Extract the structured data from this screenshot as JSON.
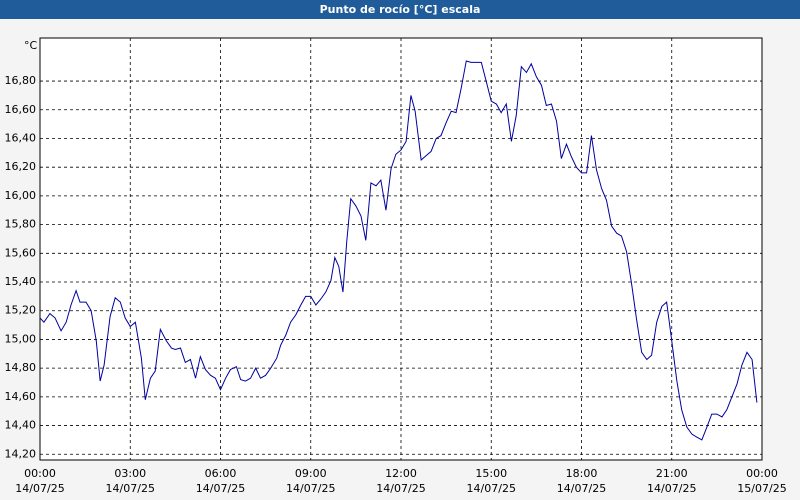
{
  "chart_data": {
    "type": "line",
    "title": "Punto de rocío [°C] escala",
    "y_label": "°C",
    "x": [
      0,
      0.13,
      0.33,
      0.5,
      0.7,
      0.87,
      1.03,
      1.2,
      1.33,
      1.53,
      1.7,
      1.87,
      2,
      2.13,
      2.33,
      2.5,
      2.67,
      2.83,
      3,
      3.17,
      3.37,
      3.5,
      3.67,
      3.83,
      4,
      4.2,
      4.37,
      4.5,
      4.67,
      4.83,
      5,
      5.17,
      5.33,
      5.5,
      5.67,
      5.83,
      6,
      6.17,
      6.33,
      6.53,
      6.67,
      6.83,
      7,
      7.17,
      7.33,
      7.5,
      7.67,
      7.87,
      8,
      8.17,
      8.33,
      8.5,
      8.67,
      8.83,
      9,
      9.17,
      9.33,
      9.5,
      9.67,
      9.8,
      9.93,
      10.07,
      10.2,
      10.33,
      10.5,
      10.67,
      10.83,
      11,
      11.17,
      11.33,
      11.5,
      11.67,
      11.83,
      12,
      12.17,
      12.33,
      12.47,
      12.67,
      12.83,
      13,
      13.17,
      13.33,
      13.5,
      13.67,
      13.83,
      14,
      14.17,
      14.33,
      14.5,
      14.67,
      14.83,
      15,
      15.17,
      15.33,
      15.5,
      15.67,
      15.83,
      16,
      16.17,
      16.33,
      16.5,
      16.67,
      16.83,
      17,
      17.17,
      17.33,
      17.5,
      17.67,
      17.83,
      18,
      18.17,
      18.33,
      18.5,
      18.67,
      18.83,
      19,
      19.17,
      19.33,
      19.5,
      19.67,
      19.83,
      20,
      20.17,
      20.33,
      20.5,
      20.67,
      20.83,
      21,
      21.17,
      21.33,
      21.5,
      21.67,
      21.83,
      22,
      22.17,
      22.33,
      22.5,
      22.67,
      22.83,
      23,
      23.17,
      23.33,
      23.5,
      23.67,
      23.83
    ],
    "series": [
      {
        "name": "Punto de rocío",
        "color": "#0000a0",
        "values": [
          15.15,
          15.12,
          15.18,
          15.15,
          15.06,
          15.12,
          15.24,
          15.34,
          15.26,
          15.26,
          15.2,
          14.99,
          14.71,
          14.82,
          15.16,
          15.29,
          15.26,
          15.15,
          15.09,
          15.12,
          14.87,
          14.58,
          14.73,
          14.78,
          15.07,
          14.99,
          14.94,
          14.93,
          14.94,
          14.84,
          14.86,
          14.73,
          14.88,
          14.79,
          14.75,
          14.73,
          14.65,
          14.73,
          14.79,
          14.81,
          14.72,
          14.71,
          14.73,
          14.8,
          14.73,
          14.75,
          14.8,
          14.87,
          14.96,
          15.03,
          15.12,
          15.17,
          15.24,
          15.3,
          15.3,
          15.24,
          15.28,
          15.33,
          15.41,
          15.57,
          15.51,
          15.33,
          15.69,
          15.98,
          15.93,
          15.86,
          15.69,
          16.09,
          16.07,
          16.11,
          15.9,
          16.19,
          16.29,
          16.32,
          16.38,
          16.7,
          16.59,
          16.25,
          16.28,
          16.31,
          16.4,
          16.42,
          16.51,
          16.59,
          16.58,
          16.75,
          16.94,
          16.93,
          16.93,
          16.93,
          16.8,
          16.66,
          16.64,
          16.58,
          16.64,
          16.38,
          16.56,
          16.9,
          16.86,
          16.92,
          16.83,
          16.77,
          16.63,
          16.64,
          16.52,
          16.26,
          16.36,
          16.27,
          16.2,
          16.16,
          16.16,
          16.42,
          16.18,
          16.05,
          15.97,
          15.79,
          15.74,
          15.72,
          15.61,
          15.38,
          15.14,
          14.91,
          14.86,
          14.89,
          15.12,
          15.23,
          15.26,
          14.99,
          14.71,
          14.51,
          14.39,
          14.34,
          14.32,
          14.3,
          14.39,
          14.48,
          14.48,
          14.46,
          14.51,
          14.6,
          14.69,
          14.82,
          14.91,
          14.86,
          14.56
        ]
      }
    ],
    "xlim": [
      0,
      24
    ],
    "xticks": [
      {
        "value": 0,
        "label": "00:00\n14/07/25"
      },
      {
        "value": 3,
        "label": "03:00\n14/07/25"
      },
      {
        "value": 6,
        "label": "06:00\n14/07/25"
      },
      {
        "value": 9,
        "label": "09:00\n14/07/25"
      },
      {
        "value": 12,
        "label": "12:00\n14/07/25"
      },
      {
        "value": 15,
        "label": "15:00\n14/07/25"
      },
      {
        "value": 18,
        "label": "18:00\n14/07/25"
      },
      {
        "value": 21,
        "label": "21:00\n14/07/25"
      },
      {
        "value": 24,
        "label": "00:00\n15/07/25"
      }
    ],
    "ylim": [
      14.16,
      17.1
    ],
    "yticks": [
      {
        "value": 14.2,
        "label": "14,20"
      },
      {
        "value": 14.4,
        "label": "14,40"
      },
      {
        "value": 14.6,
        "label": "14,60"
      },
      {
        "value": 14.8,
        "label": "14,80"
      },
      {
        "value": 15.0,
        "label": "15,00"
      },
      {
        "value": 15.2,
        "label": "15,20"
      },
      {
        "value": 15.4,
        "label": "15,40"
      },
      {
        "value": 15.6,
        "label": "15,60"
      },
      {
        "value": 15.8,
        "label": "15,80"
      },
      {
        "value": 16.0,
        "label": "16,00"
      },
      {
        "value": 16.2,
        "label": "16,20"
      },
      {
        "value": 16.4,
        "label": "16,40"
      },
      {
        "value": 16.6,
        "label": "16,60"
      },
      {
        "value": 16.8,
        "label": "16,80"
      }
    ],
    "grid": true
  }
}
